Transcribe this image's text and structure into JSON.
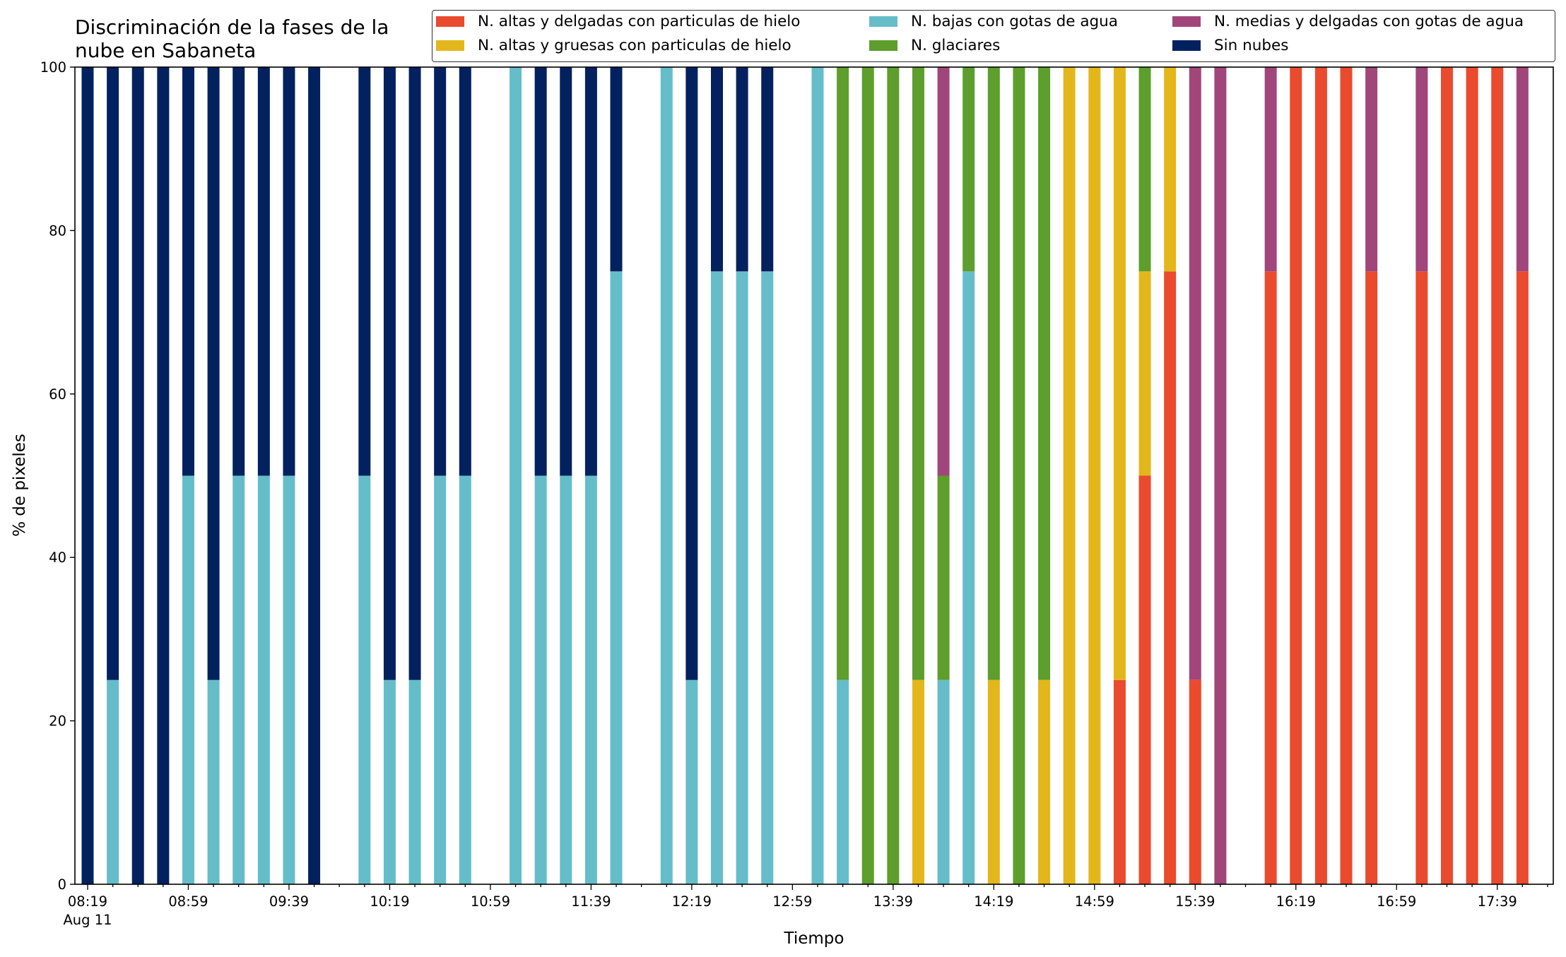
{
  "title_lines": [
    "Discriminación de la fases de la",
    "nube en Sabaneta"
  ],
  "xlabel": "Tiempo",
  "ylabel": "% de pixeles",
  "legend": [
    {
      "label": "N. altas y delgadas con particulas de hielo",
      "color": "#ea4a2d"
    },
    {
      "label": "N. altas y gruesas con particulas de hielo",
      "color": "#e3b71b"
    },
    {
      "label": "N. bajas con gotas de agua",
      "color": "#66bdca"
    },
    {
      "label": "N. glaciares",
      "color": "#5d9e2c"
    },
    {
      "label": "N. medias y delgadas con gotas de agua",
      "color": "#a1467a"
    },
    {
      "label": "Sin nubes",
      "color": "#03215f"
    }
  ],
  "chart_data": {
    "type": "bar",
    "stacked": true,
    "xlabel": "Tiempo",
    "ylabel": "% de pixeles",
    "ylim": [
      0,
      100
    ],
    "yticks": [
      0,
      20,
      40,
      60,
      80,
      100
    ],
    "xticks": [
      "08:19",
      "08:59",
      "09:39",
      "10:19",
      "10:59",
      "11:39",
      "12:19",
      "12:59",
      "13:39",
      "14:19",
      "14:59",
      "15:39",
      "16:19",
      "16:59",
      "17:39"
    ],
    "xtick_sublabel": "Aug 11",
    "grid": false,
    "legend_position": "top",
    "categories": [
      "08:19",
      "08:29",
      "08:39",
      "08:49",
      "08:59",
      "09:09",
      "09:19",
      "09:29",
      "09:39",
      "09:49",
      "09:59",
      "10:09",
      "10:19",
      "10:29",
      "10:39",
      "10:49",
      "10:59",
      "11:09",
      "11:19",
      "11:29",
      "11:39",
      "11:49",
      "11:59",
      "12:09",
      "12:19",
      "12:29",
      "12:39",
      "12:49",
      "12:59",
      "13:09",
      "13:19",
      "13:29",
      "13:39",
      "13:49",
      "13:59",
      "14:09",
      "14:19",
      "14:29",
      "14:39",
      "14:49",
      "14:59",
      "15:09",
      "15:19",
      "15:29",
      "15:39",
      "15:49",
      "15:59",
      "16:09",
      "16:19",
      "16:29",
      "16:39",
      "16:49",
      "16:59",
      "17:09",
      "17:19",
      "17:29",
      "17:39",
      "17:49"
    ],
    "series": [
      {
        "name": "N. altas y delgadas con particulas de hielo",
        "values": [
          0,
          0,
          0,
          0,
          0,
          0,
          0,
          0,
          0,
          0,
          0,
          0,
          0,
          0,
          0,
          0,
          0,
          0,
          0,
          0,
          0,
          0,
          0,
          0,
          0,
          0,
          0,
          0,
          0,
          0,
          0,
          0,
          0,
          0,
          0,
          0,
          0,
          0,
          0,
          0,
          0,
          25,
          50,
          75,
          25,
          0,
          0,
          75,
          100,
          100,
          100,
          75,
          0,
          75,
          100,
          100,
          100,
          75
        ]
      },
      {
        "name": "N. altas y gruesas con particulas de hielo",
        "values": [
          0,
          0,
          0,
          0,
          0,
          0,
          0,
          0,
          0,
          0,
          0,
          0,
          0,
          0,
          0,
          0,
          0,
          0,
          0,
          0,
          0,
          0,
          0,
          0,
          0,
          0,
          0,
          0,
          0,
          0,
          0,
          0,
          0,
          25,
          0,
          0,
          25,
          0,
          25,
          100,
          100,
          75,
          25,
          25,
          0,
          0,
          0,
          0,
          0,
          0,
          0,
          0,
          0,
          0,
          0,
          0,
          0,
          0
        ]
      },
      {
        "name": "N. bajas con gotas de agua",
        "values": [
          0,
          25,
          0,
          0,
          50,
          25,
          50,
          50,
          50,
          0,
          0,
          50,
          25,
          25,
          50,
          50,
          0,
          100,
          50,
          50,
          50,
          75,
          0,
          100,
          25,
          75,
          75,
          75,
          0,
          100,
          25,
          0,
          0,
          0,
          25,
          75,
          0,
          0,
          0,
          0,
          0,
          0,
          0,
          0,
          0,
          0,
          0,
          0,
          0,
          0,
          0,
          0,
          0,
          0,
          0,
          0,
          0,
          0
        ]
      },
      {
        "name": "N. glaciares",
        "values": [
          0,
          0,
          0,
          0,
          0,
          0,
          0,
          0,
          0,
          0,
          0,
          0,
          0,
          0,
          0,
          0,
          0,
          0,
          0,
          0,
          0,
          0,
          0,
          0,
          0,
          0,
          0,
          0,
          0,
          0,
          75,
          100,
          100,
          75,
          25,
          25,
          75,
          100,
          75,
          0,
          0,
          0,
          25,
          0,
          0,
          0,
          0,
          0,
          0,
          0,
          0,
          0,
          0,
          0,
          0,
          0,
          0,
          0
        ]
      },
      {
        "name": "N. medias y delgadas con gotas de agua",
        "values": [
          0,
          0,
          0,
          0,
          0,
          0,
          0,
          0,
          0,
          0,
          0,
          0,
          0,
          0,
          0,
          0,
          0,
          0,
          0,
          0,
          0,
          0,
          0,
          0,
          0,
          0,
          0,
          0,
          0,
          0,
          0,
          0,
          0,
          0,
          50,
          0,
          0,
          0,
          0,
          0,
          0,
          0,
          0,
          0,
          75,
          100,
          0,
          25,
          0,
          0,
          0,
          25,
          0,
          25,
          0,
          0,
          0,
          25
        ]
      },
      {
        "name": "Sin nubes",
        "values": [
          100,
          75,
          100,
          100,
          50,
          75,
          50,
          50,
          50,
          100,
          0,
          50,
          75,
          75,
          50,
          50,
          0,
          0,
          50,
          50,
          50,
          25,
          0,
          0,
          75,
          25,
          25,
          25,
          0,
          0,
          0,
          0,
          0,
          0,
          0,
          0,
          0,
          0,
          0,
          0,
          0,
          0,
          0,
          0,
          0,
          0,
          0,
          0,
          0,
          0,
          0,
          0,
          0,
          0,
          0,
          0,
          0,
          0
        ]
      }
    ]
  }
}
